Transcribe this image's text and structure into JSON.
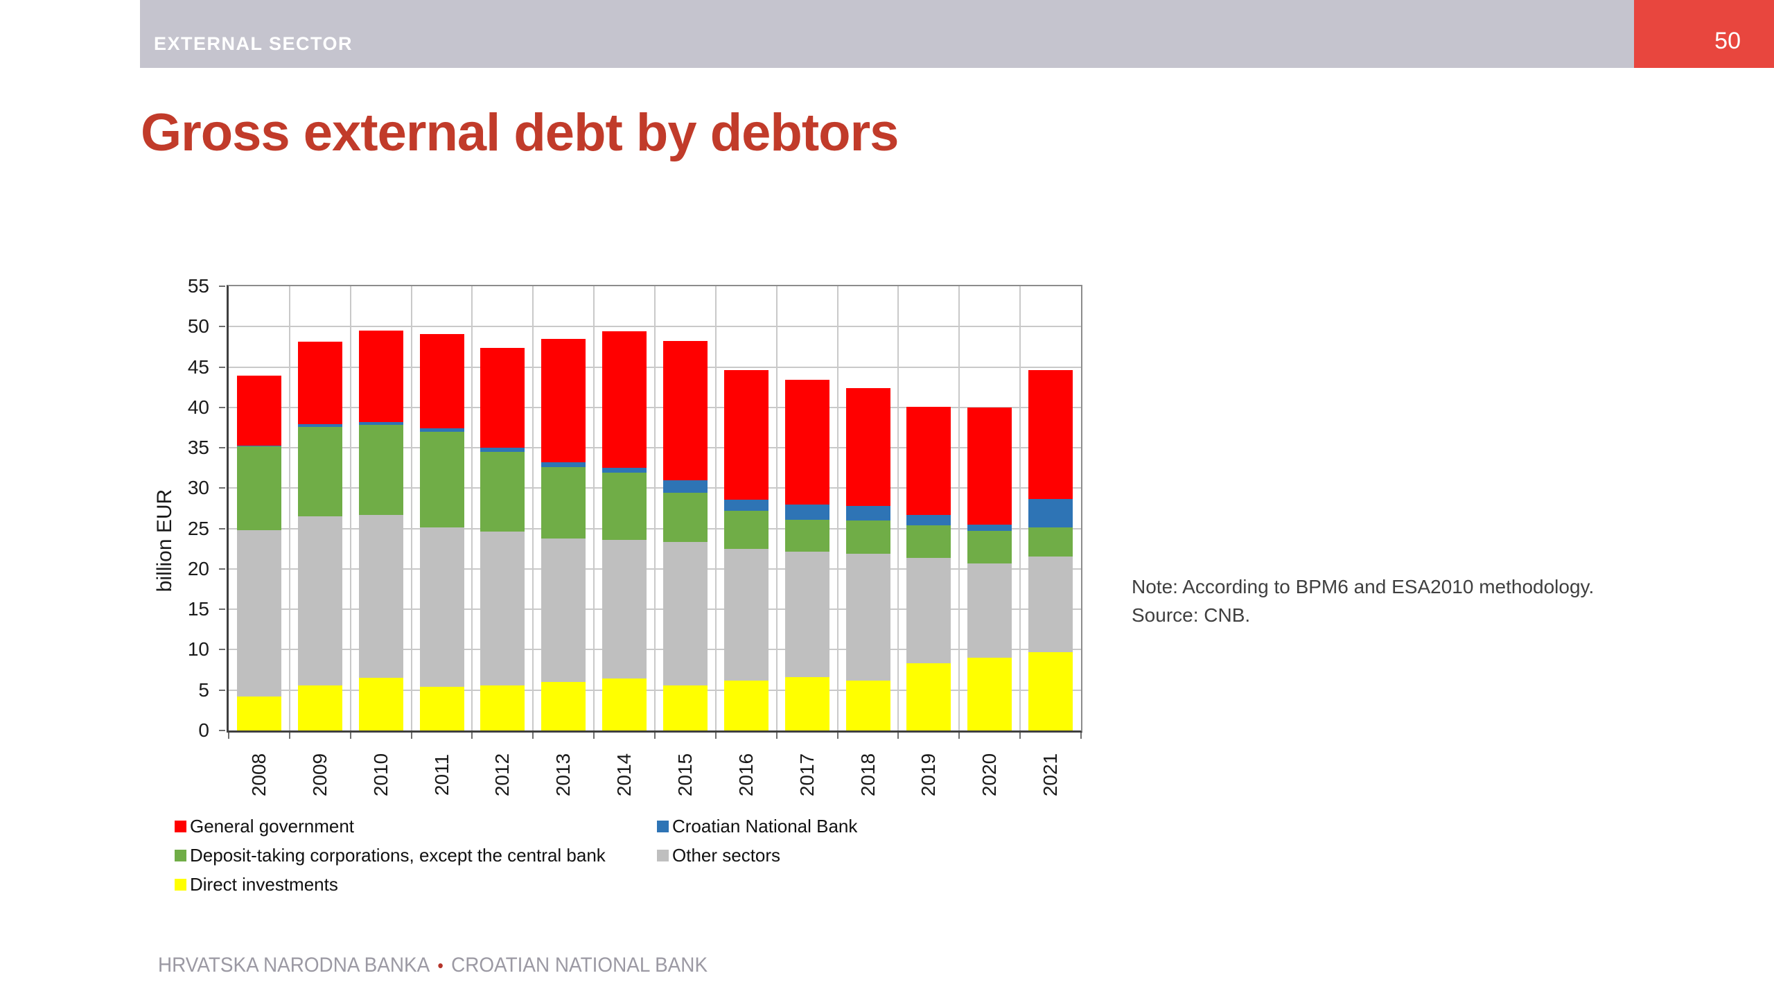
{
  "header": {
    "section_label": "EXTERNAL SECTOR",
    "page_number": "50"
  },
  "title": "Gross external debt by debtors",
  "note": {
    "line1": "Note: According to BPM6 and ESA2010 methodology.",
    "line2": "Source: CNB."
  },
  "footer": {
    "text_hr": "HRVATSKA NARODNA BANKA",
    "separator": "•",
    "text_en": "CROATIAN NATIONAL BANK"
  },
  "colors": {
    "accent_red": "#C13B2A",
    "page_box": "#E8463E",
    "header_bar": "#C5C4CE",
    "footer_text": "#9B99A3",
    "footer_dot": "#B5342A",
    "note_text": "#3F3F3F",
    "axis_text": "#1A1A1A",
    "grid": "#C9C9C9",
    "frame_dark": "#3F3F3F",
    "frame_light": "#8C8C8C",
    "tick": "#6E6E6E"
  },
  "chart_data": {
    "type": "bar",
    "stacked": true,
    "title": "",
    "xlabel": "",
    "ylabel": "billion EUR",
    "ylim": [
      0,
      55
    ],
    "ytick_step": 5,
    "grid": true,
    "legend_position": "bottom",
    "legend_columns": 2,
    "categories": [
      "2008",
      "2009",
      "2010",
      "2011",
      "2012",
      "2013",
      "2014",
      "2015",
      "2016",
      "2017",
      "2018",
      "2019",
      "2020",
      "2021"
    ],
    "series": [
      {
        "name": "Direct investments",
        "color": "#FFFF00",
        "values": [
          4.2,
          5.6,
          6.5,
          5.4,
          5.6,
          6.0,
          6.4,
          5.6,
          6.2,
          6.6,
          6.2,
          8.3,
          9.0,
          9.7
        ]
      },
      {
        "name": "Other sectors",
        "color": "#BFBFBF",
        "values": [
          20.6,
          20.9,
          20.2,
          19.7,
          19.0,
          17.8,
          17.2,
          17.7,
          16.3,
          15.5,
          15.7,
          13.1,
          11.7,
          11.8
        ]
      },
      {
        "name": "Deposit-taking corporations, except the central bank",
        "color": "#70AD47",
        "values": [
          10.4,
          11.1,
          11.1,
          11.9,
          9.9,
          8.8,
          8.3,
          6.1,
          4.7,
          4.0,
          4.1,
          4.0,
          4.0,
          3.6
        ]
      },
      {
        "name": "Croatian National Bank",
        "color": "#2E74B5",
        "values": [
          0.1,
          0.3,
          0.4,
          0.4,
          0.5,
          0.6,
          0.6,
          1.6,
          1.4,
          1.9,
          1.8,
          1.3,
          0.8,
          3.6
        ]
      },
      {
        "name": "General government",
        "color": "#FF0000",
        "values": [
          8.6,
          10.2,
          11.3,
          11.7,
          12.4,
          15.3,
          16.9,
          17.2,
          16.0,
          15.4,
          14.6,
          13.4,
          14.5,
          15.9
        ]
      }
    ],
    "legend_order": [
      "General government",
      "Croatian National Bank",
      "Deposit-taking corporations, except the central bank",
      "Other sectors",
      "Direct investments"
    ]
  }
}
